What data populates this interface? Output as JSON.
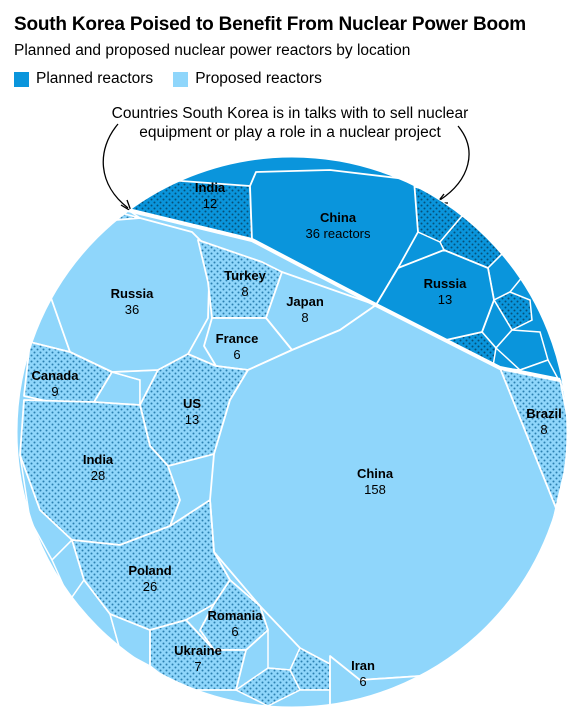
{
  "title": "South Korea Poised to Benefit From Nuclear Power Boom",
  "subtitle": "Planned and proposed nuclear power reactors by location",
  "legend": [
    {
      "label": "Planned reactors",
      "color": "#0a95dc"
    },
    {
      "label": "Proposed reactors",
      "color": "#8fd6fb"
    }
  ],
  "annotation": "Countries South Korea is in talks with to sell nuclear equipment or play a role in a nuclear project",
  "colors": {
    "planned": "#0a95dc",
    "proposed": "#8fd6fb",
    "cell_stroke": "#ffffff",
    "text": "#000000"
  },
  "chart_data": {
    "type": "voronoi-treemap",
    "title": "South Korea Poised to Benefit From Nuclear Power Boom",
    "subtitle": "Planned and proposed nuclear power reactors by location",
    "series": [
      {
        "name": "Planned reactors",
        "cells": [
          {
            "country": "India",
            "value": 12,
            "label": "12"
          },
          {
            "country": "China",
            "value": 36,
            "label": "36 reactors"
          },
          {
            "country": "Russia",
            "value": 13,
            "label": "13"
          }
        ]
      },
      {
        "name": "Proposed reactors",
        "cells": [
          {
            "country": "Russia",
            "value": 36,
            "label": "36"
          },
          {
            "country": "Turkey",
            "value": 8,
            "label": "8"
          },
          {
            "country": "Japan",
            "value": 8,
            "label": "8"
          },
          {
            "country": "France",
            "value": 6,
            "label": "6"
          },
          {
            "country": "Canada",
            "value": 9,
            "label": "9"
          },
          {
            "country": "US",
            "value": 13,
            "label": "13"
          },
          {
            "country": "India",
            "value": 28,
            "label": "28"
          },
          {
            "country": "China",
            "value": 158,
            "label": "158"
          },
          {
            "country": "Brazil",
            "value": 8,
            "label": "8"
          },
          {
            "country": "Poland",
            "value": 26,
            "label": "26"
          },
          {
            "country": "Romania",
            "value": 6,
            "label": "6"
          },
          {
            "country": "Ukraine",
            "value": 7,
            "label": "7"
          },
          {
            "country": "Iran",
            "value": 6,
            "label": "6"
          }
        ]
      }
    ],
    "highlight": "Dotted cells: countries South Korea is in talks with to sell nuclear equipment or play a role in a nuclear project"
  }
}
